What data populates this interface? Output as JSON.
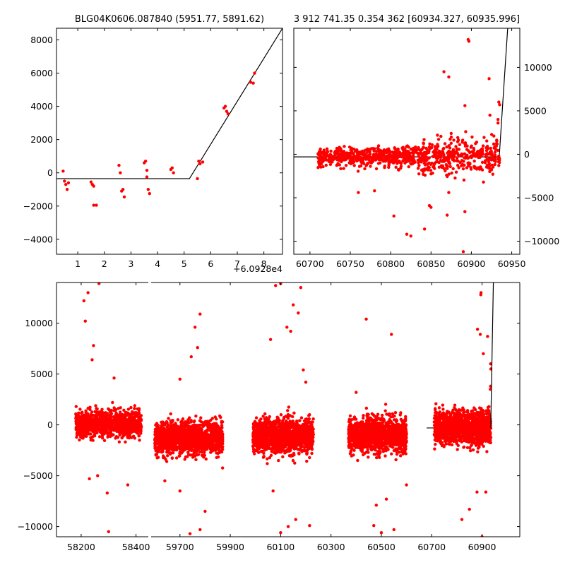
{
  "chart_data": [
    {
      "id": "zoom",
      "type": "scatter",
      "title": "BLG04K0606.087840 (5951.77, 5891.62)",
      "xlim": [
        0.2,
        8.7
      ],
      "ylim": [
        -4900,
        8700
      ],
      "x_offset_label": "+6.0928e4",
      "x_ticks": [
        1,
        2,
        3,
        4,
        5,
        6,
        7,
        8
      ],
      "y_ticks": [
        -4000,
        -2000,
        0,
        2000,
        4000,
        6000,
        8000
      ],
      "y_tick_labels": [
        "−4000",
        "−2000",
        "0",
        "2000",
        "4000",
        "6000",
        "8000"
      ],
      "points": [
        [
          0.45,
          100
        ],
        [
          0.5,
          -500
        ],
        [
          0.55,
          -700
        ],
        [
          0.6,
          -1000
        ],
        [
          0.65,
          -600
        ],
        [
          1.5,
          -550
        ],
        [
          1.55,
          -700
        ],
        [
          1.6,
          -800
        ],
        [
          1.6,
          -1950
        ],
        [
          1.7,
          -1950
        ],
        [
          2.55,
          450
        ],
        [
          2.6,
          0
        ],
        [
          2.65,
          -1100
        ],
        [
          2.7,
          -1000
        ],
        [
          2.75,
          -1450
        ],
        [
          3.5,
          600
        ],
        [
          3.55,
          700
        ],
        [
          3.6,
          150
        ],
        [
          3.6,
          -250
        ],
        [
          3.65,
          -1000
        ],
        [
          3.7,
          -1250
        ],
        [
          4.5,
          200
        ],
        [
          4.55,
          300
        ],
        [
          4.6,
          0
        ],
        [
          5.5,
          -350
        ],
        [
          5.55,
          700
        ],
        [
          5.6,
          550
        ],
        [
          5.7,
          650
        ],
        [
          6.5,
          3900
        ],
        [
          6.55,
          4000
        ],
        [
          6.6,
          3700
        ],
        [
          6.65,
          3550
        ],
        [
          7.5,
          5450
        ],
        [
          7.6,
          5400
        ],
        [
          7.65,
          6000
        ]
      ],
      "model": [
        [
          0.2,
          -350
        ],
        [
          5.2,
          -350
        ],
        [
          8.7,
          8700
        ]
      ]
    },
    {
      "id": "recent",
      "type": "scatter",
      "title": "3 912 741.35 0.354 362 [60934.327, 60935.996]",
      "xlim": [
        60680,
        60960
      ],
      "ylim": [
        -11500,
        14500
      ],
      "x_ticks": [
        60700,
        60750,
        60800,
        60850,
        60900,
        60950
      ],
      "y_ticks": [
        -10000,
        -5000,
        0,
        5000,
        10000
      ],
      "y_tick_labels": [
        "−10000",
        "−5000",
        "0",
        "5000",
        "10000"
      ],
      "segments": [
        [
          60710,
          60935
        ]
      ],
      "baseline": -300,
      "scatter_sigma": 700,
      "outliers": [
        [
          60896,
          13200
        ],
        [
          60897,
          13000
        ],
        [
          60866,
          9500
        ],
        [
          60872,
          8900
        ],
        [
          60922,
          8700
        ],
        [
          60892,
          5600
        ],
        [
          60923,
          4500
        ],
        [
          60934,
          6000
        ],
        [
          60935,
          5700
        ],
        [
          60933,
          4000
        ],
        [
          60933,
          3600
        ],
        [
          60875,
          2400
        ],
        [
          60893,
          2600
        ],
        [
          60858,
          2200
        ],
        [
          60820,
          -9200
        ],
        [
          60825,
          -9400
        ],
        [
          60842,
          -8600
        ],
        [
          60804,
          -7100
        ],
        [
          60870,
          -7000
        ],
        [
          60892,
          -6600
        ],
        [
          60850,
          -6100
        ],
        [
          60848,
          -5900
        ],
        [
          60872,
          -4400
        ],
        [
          60760,
          -4400
        ],
        [
          60780,
          -4200
        ],
        [
          60890,
          -11200
        ],
        [
          60915,
          -3200
        ]
      ],
      "model": [
        [
          60680,
          -300
        ],
        [
          60934.5,
          -300
        ],
        [
          60945,
          14500
        ]
      ]
    },
    {
      "id": "full",
      "type": "scatter",
      "xlim": [
        58110,
        61050
      ],
      "ylim": [
        -11000,
        14000
      ],
      "x_ticks": [
        58200,
        58400,
        59700,
        59900,
        60100,
        60300,
        60500,
        60700,
        60900
      ],
      "y_ticks": [
        -10000,
        -5000,
        0,
        5000,
        10000
      ],
      "y_tick_labels": [
        "−10000",
        "−5000",
        "0",
        "5000",
        "10000"
      ],
      "segments": [
        [
          58180,
          58420
        ],
        [
          59600,
          59870
        ],
        [
          59990,
          60230
        ],
        [
          60370,
          60600
        ],
        [
          60710,
          60935
        ]
      ],
      "segment_baselines": [
        100,
        -1300,
        -1100,
        -1000,
        -300
      ],
      "scatter_sigma": 800,
      "outliers": [
        [
          58210,
          12200
        ],
        [
          58225,
          13000
        ],
        [
          58215,
          10200
        ],
        [
          58265,
          13900
        ],
        [
          58245,
          7800
        ],
        [
          58240,
          6400
        ],
        [
          58320,
          4600
        ],
        [
          58230,
          -5300
        ],
        [
          58260,
          -5000
        ],
        [
          58300,
          -10500
        ],
        [
          58295,
          -6700
        ],
        [
          58370,
          -5900
        ],
        [
          59760,
          9600
        ],
        [
          59770,
          7600
        ],
        [
          59780,
          10900
        ],
        [
          59745,
          6700
        ],
        [
          59700,
          4500
        ],
        [
          59740,
          -10700
        ],
        [
          59780,
          -10300
        ],
        [
          59800,
          -8500
        ],
        [
          59640,
          -5500
        ],
        [
          59700,
          -6500
        ],
        [
          60100,
          13900
        ],
        [
          60080,
          13700
        ],
        [
          60180,
          13500
        ],
        [
          60150,
          11800
        ],
        [
          60170,
          11000
        ],
        [
          60125,
          9600
        ],
        [
          60140,
          9200
        ],
        [
          60060,
          8400
        ],
        [
          60190,
          5400
        ],
        [
          60200,
          4200
        ],
        [
          60100,
          -10600
        ],
        [
          60130,
          -10000
        ],
        [
          60160,
          -9300
        ],
        [
          60215,
          -9900
        ],
        [
          60070,
          -6500
        ],
        [
          60440,
          10400
        ],
        [
          60540,
          8900
        ],
        [
          60400,
          3200
        ],
        [
          60470,
          -9900
        ],
        [
          60500,
          -10600
        ],
        [
          60550,
          -10300
        ],
        [
          60480,
          -7900
        ],
        [
          60520,
          -7300
        ],
        [
          60600,
          -5900
        ],
        [
          60896,
          13000
        ],
        [
          60895,
          12800
        ],
        [
          60882,
          9400
        ],
        [
          60893,
          8900
        ],
        [
          60905,
          7000
        ],
        [
          60922,
          8700
        ],
        [
          60934,
          6000
        ],
        [
          60935,
          5500
        ],
        [
          60934,
          3800
        ],
        [
          60933,
          3500
        ],
        [
          60880,
          -6600
        ],
        [
          60820,
          -9300
        ],
        [
          60900,
          -11000
        ],
        [
          60915,
          -6600
        ],
        [
          60850,
          -8300
        ]
      ],
      "model": [
        [
          60680,
          -300
        ],
        [
          60934.5,
          -300
        ],
        [
          60945,
          14000
        ]
      ]
    }
  ]
}
